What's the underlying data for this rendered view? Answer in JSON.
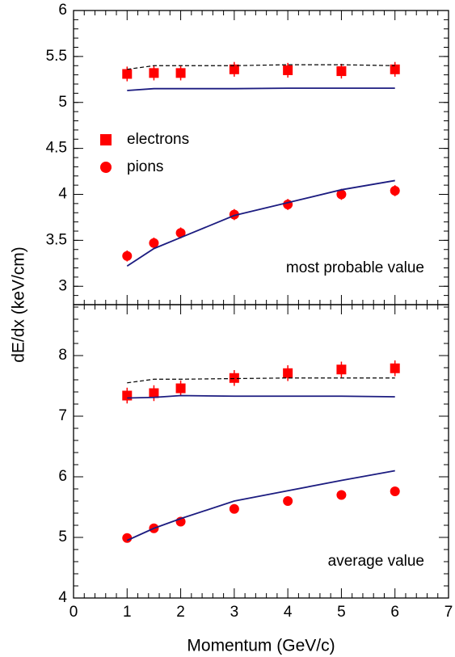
{
  "chart_data": [
    {
      "type": "scatter",
      "ylabel": "dE/dx (keV/cm)",
      "annotation": "most probable value",
      "legend": true,
      "x": [
        1,
        1.5,
        2,
        3,
        4,
        5,
        6
      ],
      "xlim": [
        0,
        7
      ],
      "ylim": [
        2.8,
        6
      ],
      "yticks": [
        3,
        3.5,
        4,
        4.5,
        5,
        5.5,
        6
      ],
      "series": [
        {
          "name": "electrons",
          "color": "#ff0000",
          "marker": "square",
          "values": [
            5.31,
            5.32,
            5.32,
            5.36,
            5.35,
            5.34,
            5.36
          ],
          "errors": [
            0.08,
            0.08,
            0.08,
            0.08,
            0.08,
            0.08,
            0.08
          ]
        },
        {
          "name": "pions",
          "color": "#ff0000",
          "marker": "circle",
          "values": [
            3.33,
            3.47,
            3.58,
            3.78,
            3.89,
            4.0,
            4.04
          ],
          "errors": [
            0.06,
            0.06,
            0.06,
            0.06,
            0.06,
            0.06,
            0.06
          ]
        },
        {
          "color": "#000000",
          "line": "dashed",
          "values": [
            5.36,
            5.4,
            5.4,
            5.4,
            5.41,
            5.41,
            5.4
          ]
        },
        {
          "color": "#1c1c80",
          "line": "solid",
          "values": [
            5.13,
            5.15,
            5.15,
            5.15,
            5.155,
            5.155,
            5.155
          ]
        },
        {
          "color": "#1c1c80",
          "line": "solid",
          "values": [
            3.22,
            3.41,
            3.53,
            3.77,
            3.91,
            4.05,
            4.15
          ]
        }
      ]
    },
    {
      "type": "scatter",
      "xlabel": "Momentum (GeV/c)",
      "annotation": "average value",
      "x": [
        1,
        1.5,
        2,
        3,
        4,
        5,
        6
      ],
      "xlim": [
        0,
        7
      ],
      "xticks": [
        0,
        1,
        2,
        3,
        4,
        5,
        6,
        7
      ],
      "ylim": [
        4,
        8.84
      ],
      "yticks": [
        4,
        5,
        6,
        7,
        8
      ],
      "series": [
        {
          "color": "#ff0000",
          "marker": "square",
          "values": [
            7.34,
            7.38,
            7.46,
            7.63,
            7.71,
            7.77,
            7.79
          ],
          "errors": [
            0.13,
            0.13,
            0.13,
            0.13,
            0.13,
            0.13,
            0.13
          ]
        },
        {
          "color": "#ff0000",
          "marker": "circle",
          "values": [
            4.99,
            5.15,
            5.26,
            5.47,
            5.6,
            5.7,
            5.76
          ],
          "errors": [
            0.07,
            0.07,
            0.07,
            0.07,
            0.07,
            0.07,
            0.07
          ]
        },
        {
          "color": "#000000",
          "line": "dashed",
          "values": [
            7.55,
            7.61,
            7.61,
            7.62,
            7.63,
            7.63,
            7.63
          ]
        },
        {
          "color": "#1c1c80",
          "line": "solid",
          "values": [
            7.3,
            7.31,
            7.34,
            7.33,
            7.33,
            7.33,
            7.32
          ]
        },
        {
          "color": "#1c1c80",
          "line": "solid",
          "values": [
            4.95,
            5.15,
            5.31,
            5.6,
            5.77,
            5.94,
            6.1
          ]
        }
      ]
    }
  ]
}
